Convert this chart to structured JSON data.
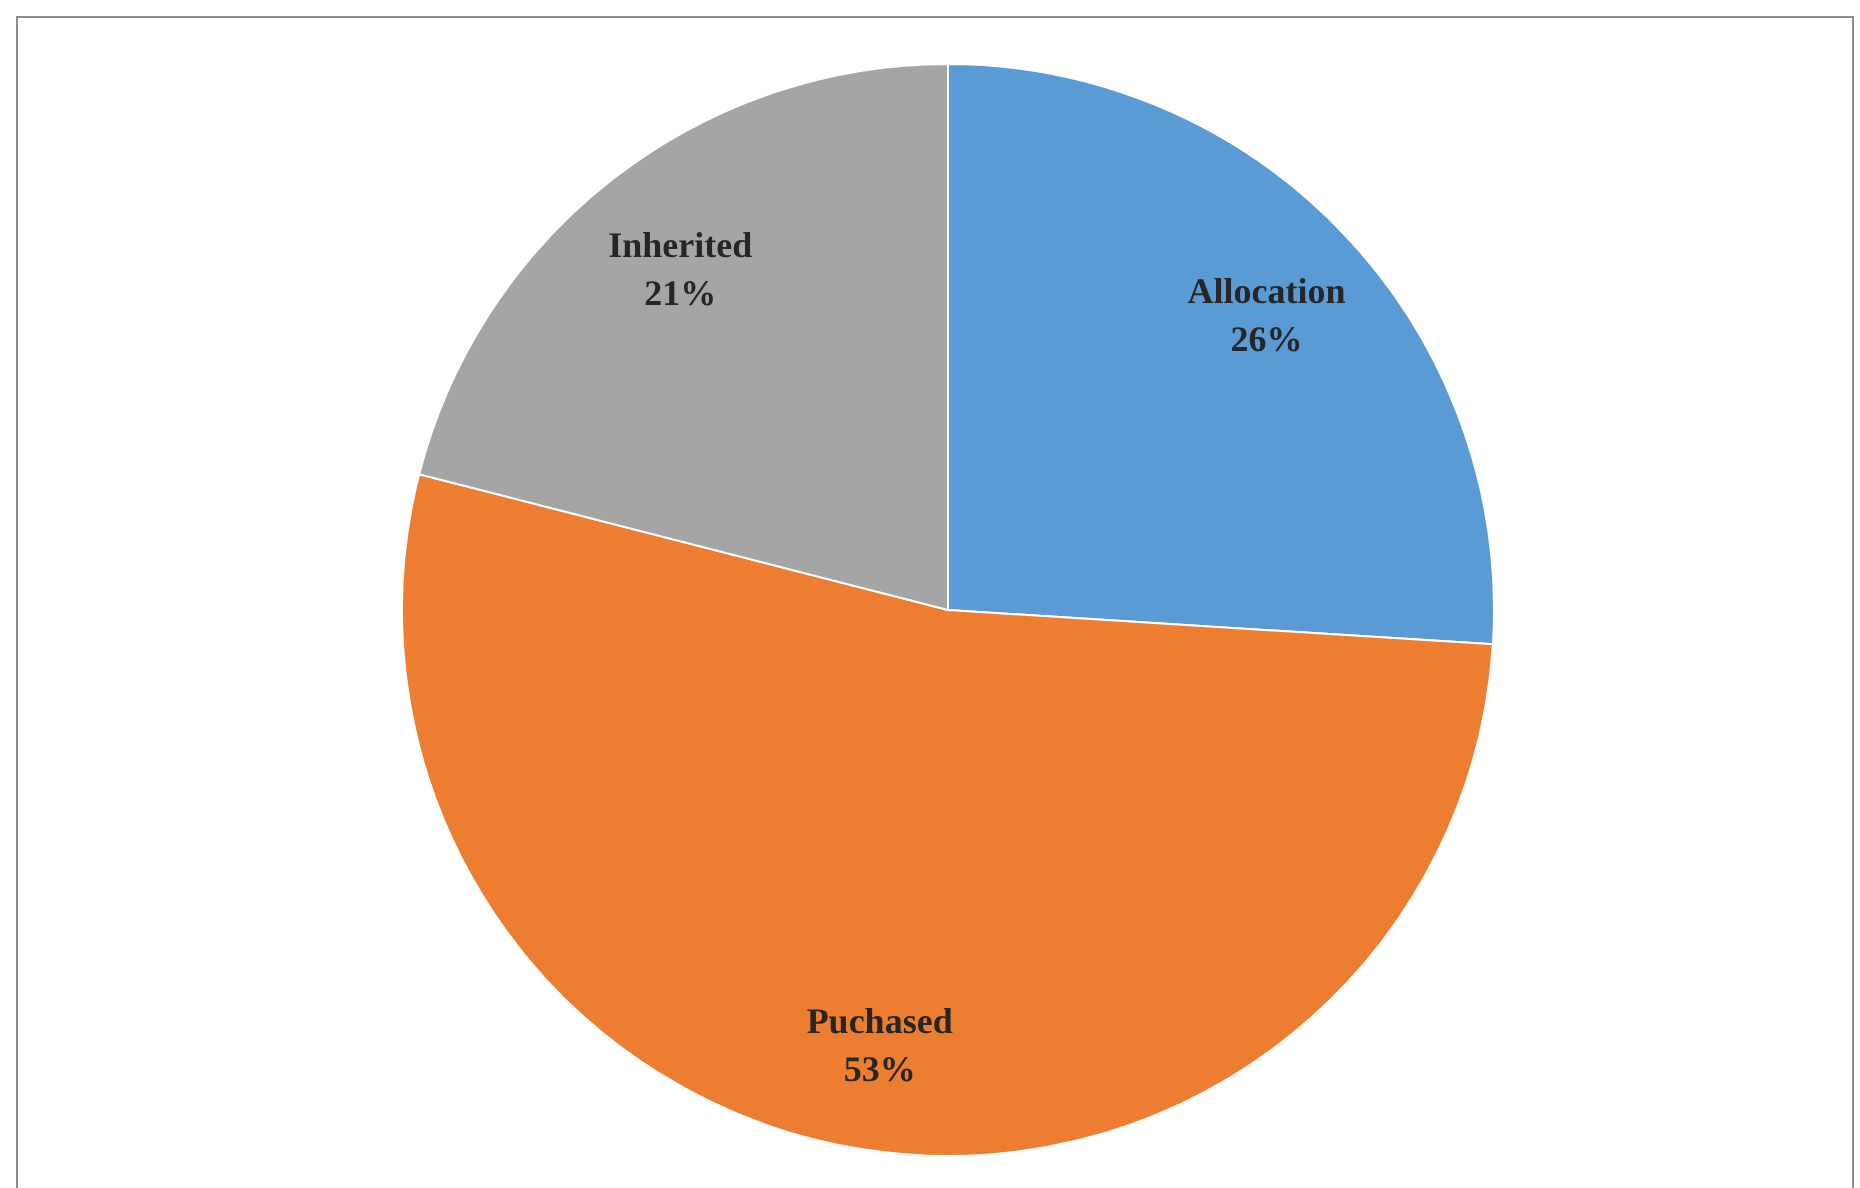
{
  "chart_data": {
    "type": "pie",
    "categories": [
      "Allocation",
      "Puchased",
      "Inherited"
    ],
    "values": [
      26,
      53,
      21
    ],
    "colors": [
      "#5b9bd5",
      "#ed7d31",
      "#a5a5a5"
    ],
    "value_labels": [
      "26%",
      "53%",
      "21%"
    ]
  }
}
